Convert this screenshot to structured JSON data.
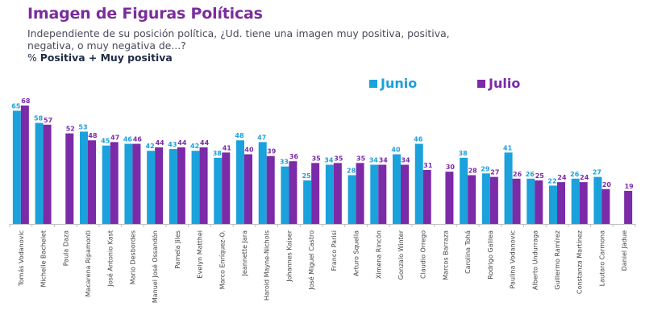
{
  "header": {
    "title": "Imagen de Figuras Políticas",
    "subtitle": "Independiente de su posición política, ¿Ud. tiene una imagen muy positiva, positiva, negativa, o muy negativa de...?",
    "metric_prefix": "%",
    "metric_label": "Positiva + Muy positiva"
  },
  "colors": {
    "title": "#7B2D9B",
    "junio": "#1BA1DC",
    "julio": "#7B2AA8"
  },
  "chart_data": {
    "type": "bar",
    "title": "Imagen de Figuras Políticas",
    "xlabel": "",
    "ylabel": "% Positiva + Muy positiva",
    "ylim": [
      0,
      70
    ],
    "grid": false,
    "legend_position": "top-right",
    "categories": [
      "Tomás Vodanovic",
      "Michelle Bachelet",
      "Paula Daza",
      "Macarena Ripamonti",
      "José Antonio Kast",
      "Mario Desbordes",
      "Manuel José Ossandón",
      "Pamela Jiles",
      "Evelyn Matthei",
      "Marco Enríquez-O.",
      "Jeannette Jara",
      "Harold Mayne-Nichols",
      "Johannes Kaiser",
      "José Miguel Castro",
      "Franco Parisi",
      "Arturo Squella",
      "Ximena Rincón",
      "Gonzalo Winter",
      "Claudio Orrego",
      "Marcos Barraza",
      "Carolina Tohá",
      "Rodrigo Galilea",
      "Paulina Vodanovic",
      "Alberto Undurraga",
      "Guillermo Ramírez",
      "Constanza Martínez",
      "Lautaro Carmona",
      "Daniel Jadue"
    ],
    "series": [
      {
        "name": "Junio",
        "values": [
          65,
          58,
          null,
          53,
          45,
          46,
          42,
          43,
          42,
          38,
          48,
          47,
          33,
          25,
          34,
          28,
          34,
          40,
          46,
          null,
          38,
          29,
          41,
          26,
          22,
          26,
          27,
          null
        ]
      },
      {
        "name": "Julio",
        "values": [
          68,
          57,
          52,
          48,
          47,
          46,
          44,
          44,
          44,
          41,
          40,
          39,
          36,
          35,
          35,
          35,
          34,
          34,
          31,
          30,
          28,
          27,
          26,
          25,
          24,
          24,
          20,
          19
        ]
      }
    ]
  }
}
